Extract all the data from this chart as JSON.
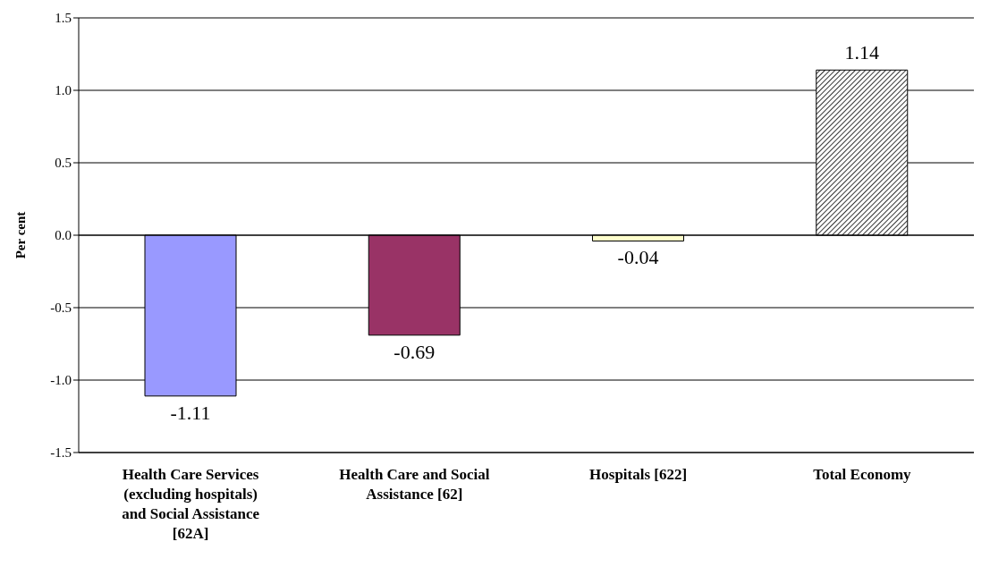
{
  "chart_data": {
    "type": "bar",
    "ylabel": "Per cent",
    "categories": [
      "Health Care Services (excluding hospitals) and Social Assistance [62A]",
      "Health Care and Social Assistance [62]",
      "Hospitals [622]",
      "Total Economy"
    ],
    "values": [
      -1.11,
      -0.69,
      -0.04,
      1.14
    ],
    "colors": [
      "#9999ff",
      "#993366",
      "#ffffcc",
      "#000000"
    ],
    "ylim": [
      -1.5,
      1.5
    ],
    "yticks": [
      {
        "value": -1.5,
        "label": "-1.5"
      },
      {
        "value": -1.0,
        "label": "-1.0"
      },
      {
        "value": -0.5,
        "label": "-0.5"
      },
      {
        "value": 0,
        "label": "0.0"
      },
      {
        "value": 0.5,
        "label": "0.5"
      },
      {
        "value": 1.0,
        "label": "1.0"
      },
      {
        "value": 1.5,
        "label": "1.5"
      }
    ],
    "grid": "y",
    "data_labels": true
  }
}
